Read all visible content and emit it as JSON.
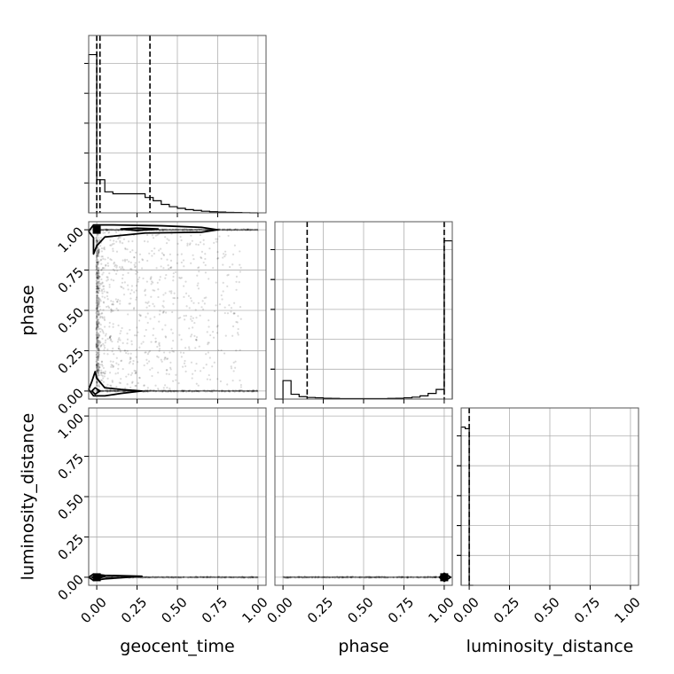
{
  "chart_data": {
    "type": "corner",
    "parameters": [
      "geocent_time",
      "phase",
      "luminosity_distance"
    ],
    "axis_labels": [
      "geocent_time",
      "phase",
      "luminosity_distance"
    ],
    "tick_labels": [
      "0.00",
      "0.25",
      "0.50",
      "0.75",
      "1.00"
    ],
    "ticks": [
      0,
      0.25,
      0.5,
      0.75,
      1.0
    ],
    "ranges": [
      [
        -0.05,
        1.05
      ],
      [
        -0.05,
        1.05
      ],
      [
        -0.05,
        1.05
      ]
    ],
    "grid": true,
    "histograms": [
      {
        "parameter": "geocent_time",
        "bin_edges": [
          -0.05,
          0.0,
          0.05,
          0.1,
          0.15,
          0.2,
          0.25,
          0.3,
          0.35,
          0.4,
          0.45,
          0.5,
          0.55,
          0.6,
          0.65,
          0.7,
          0.75,
          0.8,
          0.85,
          0.9,
          0.95,
          1.0
        ],
        "counts": [
          980,
          205,
          130,
          118,
          118,
          118,
          118,
          95,
          75,
          52,
          38,
          28,
          20,
          15,
          10,
          7,
          5,
          3,
          2,
          1,
          0
        ],
        "quantiles": [
          0.0,
          0.02,
          0.33
        ]
      },
      {
        "parameter": "phase",
        "bin_edges": [
          -0.05,
          0.0,
          0.05,
          0.1,
          0.15,
          0.2,
          0.25,
          0.3,
          0.35,
          0.4,
          0.45,
          0.5,
          0.55,
          0.6,
          0.65,
          0.7,
          0.75,
          0.8,
          0.85,
          0.9,
          0.95,
          1.0,
          1.05
        ],
        "counts": [
          0,
          115,
          30,
          15,
          10,
          8,
          5,
          4,
          3,
          3,
          3,
          3,
          3,
          3,
          4,
          5,
          8,
          12,
          20,
          35,
          60,
          985
        ],
        "quantiles": [
          0.15,
          1.0
        ]
      },
      {
        "parameter": "luminosity_distance",
        "bin_edges": [
          -0.05,
          -0.025,
          0.0,
          0.025
        ],
        "counts": [
          985,
          975,
          0
        ],
        "quantiles": [
          0.0
        ]
      }
    ],
    "panels_2d": [
      {
        "x": "geocent_time",
        "y": "phase",
        "max_point": [
          0.0,
          1.0
        ],
        "scatter_columns": [
          {
            "x": 0.0,
            "y0": 0.05,
            "y1": 0.95
          },
          {
            "x": 0.01,
            "y0": 0.1,
            "y1": 0.9
          }
        ],
        "scatter_region": {
          "x0": 0.0,
          "x1": 1.0,
          "y0": 0.0,
          "y1": 1.0
        },
        "scatter_bands": [
          {
            "y": 1.0,
            "x0": 0.0,
            "x1": 1.0
          },
          {
            "y": 0.0,
            "x0": 0.0,
            "x1": 1.0
          }
        ],
        "contours": [
          [
            [
              -0.02,
              1.03
            ],
            [
              0.1,
              1.03
            ],
            [
              0.4,
              1.025
            ],
            [
              0.65,
              1.015
            ],
            [
              0.75,
              1.0
            ],
            [
              0.65,
              0.985
            ],
            [
              0.3,
              0.98
            ],
            [
              0.05,
              0.955
            ],
            [
              0.0,
              0.9
            ],
            [
              -0.02,
              0.85
            ],
            [
              -0.02,
              0.95
            ],
            [
              -0.05,
              0.99
            ],
            [
              -0.02,
              1.03
            ]
          ],
          [
            [
              0.15,
              1.005
            ],
            [
              0.25,
              1.01
            ],
            [
              0.38,
              1.005
            ],
            [
              0.25,
              0.995
            ],
            [
              0.15,
              1.005
            ]
          ],
          [
            [
              -0.05,
              0.01
            ],
            [
              -0.03,
              0.06
            ],
            [
              -0.01,
              0.12
            ],
            [
              0.0,
              0.08
            ],
            [
              0.05,
              0.02
            ],
            [
              0.15,
              0.01
            ],
            [
              0.28,
              0.0
            ],
            [
              0.15,
              -0.015
            ],
            [
              0.05,
              -0.03
            ],
            [
              -0.02,
              -0.03
            ],
            [
              -0.05,
              0.01
            ]
          ],
          [
            [
              -0.03,
              0.0
            ],
            [
              -0.01,
              0.02
            ],
            [
              0.02,
              0.0
            ],
            [
              -0.01,
              -0.02
            ],
            [
              -0.03,
              0.0
            ]
          ]
        ]
      },
      {
        "x": "geocent_time",
        "y": "luminosity_distance",
        "max_point": [
          0.0,
          0.0
        ],
        "scatter_bands": [
          {
            "y": 0.0,
            "x0": 0.0,
            "x1": 1.0
          }
        ],
        "contours": [
          [
            [
              -0.05,
              0.0
            ],
            [
              -0.02,
              0.02
            ],
            [
              0.05,
              0.012
            ],
            [
              0.28,
              0.006
            ],
            [
              0.05,
              -0.01
            ],
            [
              -0.02,
              -0.02
            ],
            [
              -0.05,
              0.0
            ]
          ],
          [
            [
              -0.03,
              0.0
            ],
            [
              0.0,
              0.012
            ],
            [
              0.05,
              0.006
            ],
            [
              0.0,
              -0.01
            ],
            [
              -0.03,
              0.0
            ]
          ]
        ]
      },
      {
        "x": "phase",
        "y": "luminosity_distance",
        "max_point": [
          1.0,
          0.0
        ],
        "scatter_bands": [
          {
            "y": 0.0,
            "x0": 0.0,
            "x1": 1.0
          }
        ],
        "contours": [
          [
            [
              0.97,
              0.0
            ],
            [
              1.0,
              0.025
            ],
            [
              1.04,
              0.0
            ],
            [
              1.0,
              -0.025
            ],
            [
              0.97,
              0.0
            ]
          ],
          [
            [
              0.985,
              0.0
            ],
            [
              1.0,
              0.012
            ],
            [
              1.02,
              0.0
            ],
            [
              1.0,
              -0.012
            ],
            [
              0.985,
              0.0
            ]
          ]
        ]
      }
    ]
  }
}
